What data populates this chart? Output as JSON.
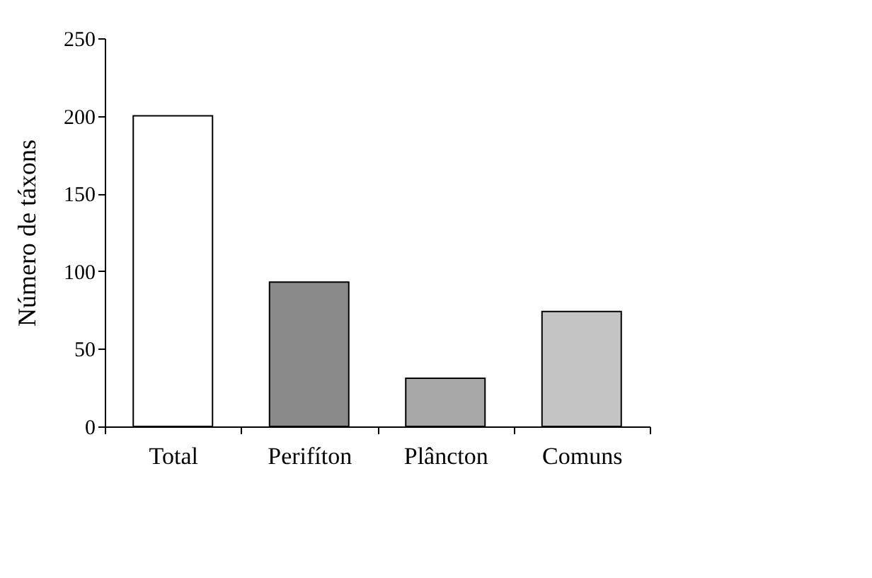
{
  "chart_data": {
    "type": "bar",
    "ylabel": "Número de táxons",
    "categories": [
      "Total",
      "Perifíton",
      "Plâncton",
      "Comuns"
    ],
    "values": [
      200,
      93,
      31,
      74
    ],
    "colors": [
      "#ffffff",
      "#8a8a8a",
      "#a8a8a8",
      "#c4c4c4"
    ],
    "ylim": [
      0,
      250
    ],
    "yticks": [
      0,
      50,
      100,
      150,
      200,
      250
    ],
    "grid": false
  }
}
